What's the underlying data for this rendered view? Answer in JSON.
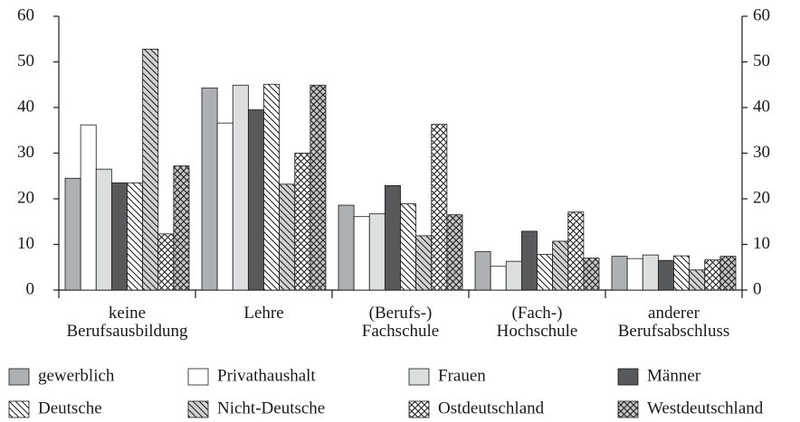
{
  "chart_data": {
    "type": "bar",
    "categories": [
      "keine\nBerufsausbildung",
      "Lehre",
      "(Berufs-)\nFachschule",
      "(Fach-)\nHochschule",
      "anderer\nBerufsabschluss"
    ],
    "series": [
      {
        "name": "gewerblich",
        "color": "#aeb1b3",
        "hatch": "none",
        "values": [
          24.5,
          44.3,
          18.6,
          8.4,
          7.4
        ]
      },
      {
        "name": "Privathaushalt",
        "color": "#ffffff",
        "hatch": "none",
        "values": [
          36.2,
          36.6,
          16.1,
          5.2,
          6.9
        ]
      },
      {
        "name": "Frauen",
        "color": "#dcdfe0",
        "hatch": "none",
        "values": [
          26.5,
          44.9,
          16.7,
          6.3,
          7.7
        ]
      },
      {
        "name": "Männer",
        "color": "#58595b",
        "hatch": "none",
        "values": [
          23.5,
          39.5,
          22.9,
          12.9,
          6.5
        ]
      },
      {
        "name": "Deutsche",
        "color": "#ffffff",
        "hatch": "diagonal",
        "values": [
          23.5,
          45.1,
          18.9,
          7.8,
          7.5
        ]
      },
      {
        "name": "Nicht-Deutsche",
        "color": "#d0d2d3",
        "hatch": "diagonal",
        "values": [
          52.8,
          23.2,
          11.9,
          10.7,
          4.4
        ]
      },
      {
        "name": "Ostdeutschland",
        "color": "#ffffff",
        "hatch": "cross",
        "values": [
          12.3,
          30.0,
          36.3,
          17.1,
          6.6
        ]
      },
      {
        "name": "Westdeutschland",
        "color": "#c4c6c8",
        "hatch": "cross",
        "values": [
          27.2,
          44.9,
          16.5,
          7.0,
          7.4
        ]
      }
    ],
    "ylim": [
      0,
      60
    ],
    "yticks": [
      0,
      10,
      20,
      30,
      40,
      50,
      60
    ],
    "y2lim": [
      0,
      60
    ],
    "y2ticks": [
      0,
      10,
      20,
      30,
      40,
      50,
      60
    ],
    "legend": "bottom"
  }
}
